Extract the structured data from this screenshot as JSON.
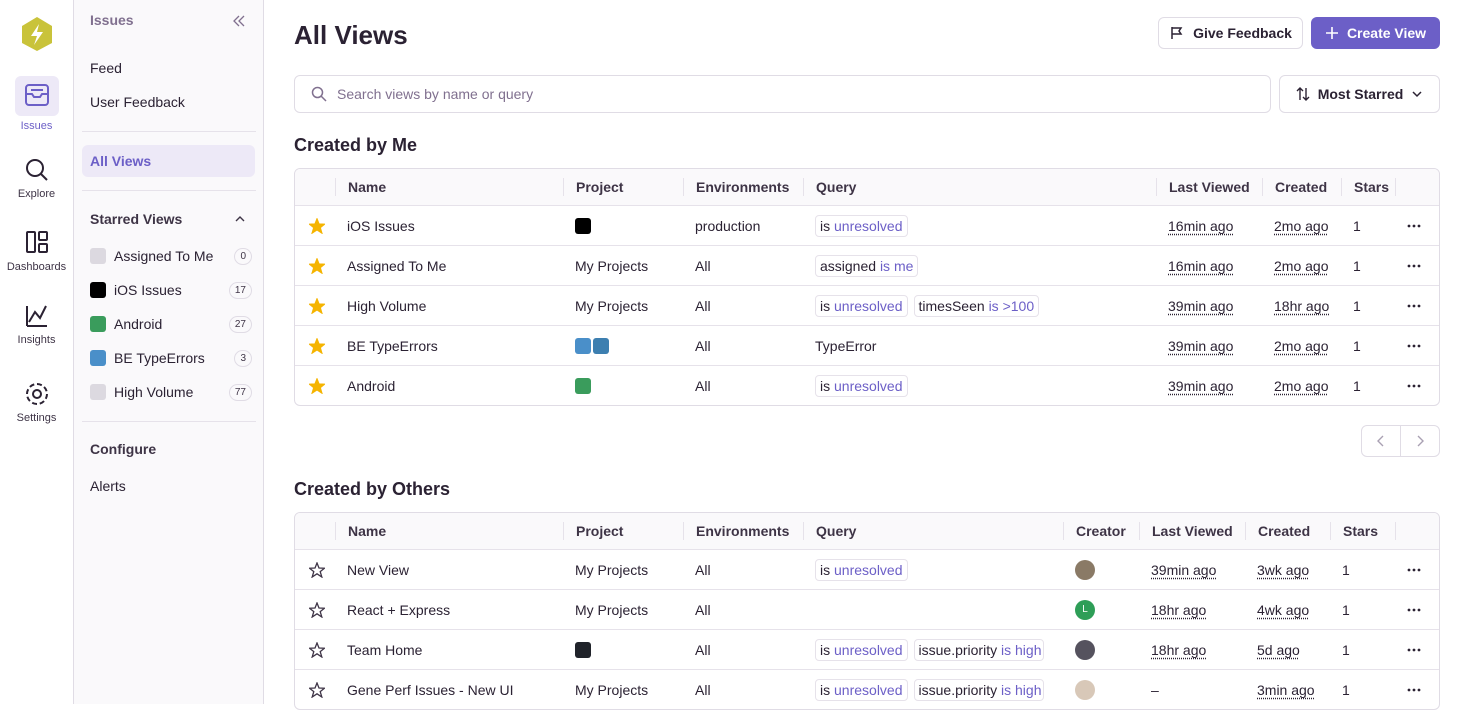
{
  "nav": {
    "items": [
      {
        "label": "Issues",
        "active": true
      },
      {
        "label": "Explore"
      },
      {
        "label": "Dashboards"
      },
      {
        "label": "Insights"
      },
      {
        "label": "Settings"
      }
    ]
  },
  "sidebar": {
    "title": "Issues",
    "links": [
      "Feed",
      "User Feedback"
    ],
    "active": "All Views",
    "starred_title": "Starred Views",
    "starred": [
      {
        "name": "Assigned To Me",
        "count": 0,
        "icon_colors": [
          "#dcd9e0"
        ]
      },
      {
        "name": "iOS Issues",
        "count": 17,
        "icon_colors": [
          "#000000"
        ]
      },
      {
        "name": "Android",
        "count": 27,
        "icon_colors": [
          "#3a9c5c"
        ]
      },
      {
        "name": "BE TypeErrors",
        "count": 3,
        "icon_colors": [
          "#4a8fc9"
        ]
      },
      {
        "name": "High Volume",
        "count": 77,
        "icon_colors": [
          "#dcd9e0"
        ]
      }
    ],
    "configure_title": "Configure",
    "configure_links": [
      "Alerts"
    ]
  },
  "header": {
    "title": "All Views",
    "feedback_button": "Give Feedback",
    "create_button": "Create View"
  },
  "search": {
    "placeholder": "Search views by name or query"
  },
  "sort": {
    "label": "Most Starred"
  },
  "sections": [
    {
      "title": "Created by Me",
      "columns": [
        "Name",
        "Project",
        "Environments",
        "Query",
        "Last Viewed",
        "Created",
        "Stars"
      ],
      "rows": [
        {
          "starred": true,
          "name": "iOS Issues",
          "project_icon_colors": [
            "#000000"
          ],
          "environment": "production",
          "query": [
            {
              "op": "is",
              "value": "unresolved"
            }
          ],
          "last_viewed": "16min ago",
          "created": "2mo ago",
          "stars": 1
        },
        {
          "starred": true,
          "name": "Assigned To Me",
          "project": "My Projects",
          "environment": "All",
          "query": [
            {
              "key": "assigned",
              "op": "is",
              "value": "me"
            }
          ],
          "last_viewed": "16min ago",
          "created": "2mo ago",
          "stars": 1
        },
        {
          "starred": true,
          "name": "High Volume",
          "project": "My Projects",
          "environment": "All",
          "query": [
            {
              "op": "is",
              "value": "unresolved"
            },
            {
              "key": "timesSeen",
              "op": "is",
              "value": ">100"
            }
          ],
          "last_viewed": "39min ago",
          "created": "18hr ago",
          "stars": 1
        },
        {
          "starred": true,
          "name": "BE TypeErrors",
          "project_icon_colors": [
            "#4a8fc9",
            "#3d7fb0"
          ],
          "environment": "All",
          "query_text": "TypeError",
          "last_viewed": "39min ago",
          "created": "2mo ago",
          "stars": 1
        },
        {
          "starred": true,
          "name": "Android",
          "project_icon_colors": [
            "#3a9c5c"
          ],
          "environment": "All",
          "query": [
            {
              "op": "is",
              "value": "unresolved"
            }
          ],
          "last_viewed": "39min ago",
          "created": "2mo ago",
          "stars": 1
        }
      ]
    },
    {
      "title": "Created by Others",
      "columns": [
        "Name",
        "Project",
        "Environments",
        "Query",
        "Creator",
        "Last Viewed",
        "Created",
        "Stars"
      ],
      "rows": [
        {
          "starred": false,
          "name": "New View",
          "project": "My Projects",
          "environment": "All",
          "query": [
            {
              "op": "is",
              "value": "unresolved"
            }
          ],
          "creator": {
            "color": "#8a7a66"
          },
          "last_viewed": "39min ago",
          "created": "3wk ago",
          "stars": 1
        },
        {
          "starred": false,
          "name": "React + Express",
          "project": "My Projects",
          "environment": "All",
          "query": [],
          "creator": {
            "initial": "L",
            "color": "#2e9e57"
          },
          "last_viewed": "18hr ago",
          "created": "4wk ago",
          "stars": 1
        },
        {
          "starred": false,
          "name": "Team Home",
          "project_icon_colors": [
            "#20232a"
          ],
          "environment": "All",
          "query": [
            {
              "op": "is",
              "value": "unresolved"
            },
            {
              "key": "issue.priority",
              "op": "is",
              "value": "high"
            }
          ],
          "creator": {
            "color": "#55525e"
          },
          "last_viewed": "18hr ago",
          "created": "5d ago",
          "stars": 1
        },
        {
          "starred": false,
          "name": "Gene Perf Issues - New UI",
          "project": "My Projects",
          "environment": "All",
          "query": [
            {
              "op": "is",
              "value": "unresolved"
            },
            {
              "key": "issue.priority",
              "op": "is",
              "value": "high"
            }
          ],
          "creator": {
            "color": "#d8c8b8"
          },
          "last_viewed": "–",
          "created": "3min ago",
          "stars": 1
        }
      ]
    }
  ]
}
